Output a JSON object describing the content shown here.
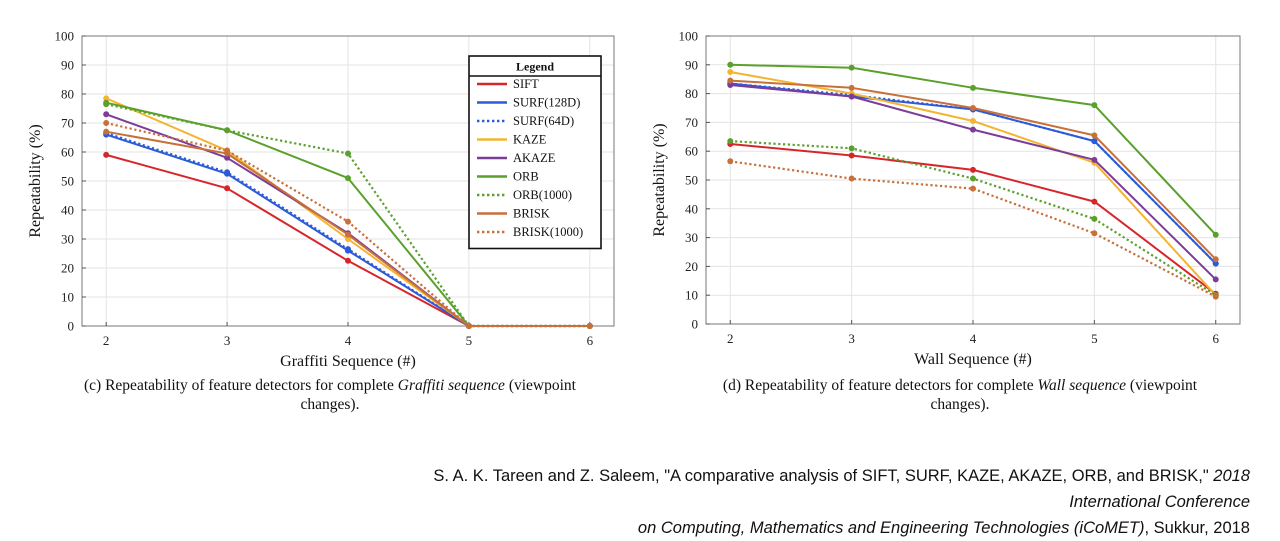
{
  "chart_data": [
    {
      "type": "line",
      "title": "",
      "xlabel": "Graffiti Sequence (#)",
      "ylabel": "Repeatability (%)",
      "x": [
        2,
        3,
        4,
        5,
        6
      ],
      "xlim": [
        1.8,
        6.2
      ],
      "ylim": [
        0,
        100
      ],
      "yticks": [
        0,
        10,
        20,
        30,
        40,
        50,
        60,
        70,
        80,
        90,
        100
      ],
      "grid": true,
      "legend": {
        "title": "Legend",
        "placement": "top-right",
        "entries": [
          "SIFT",
          "SURF(128D)",
          "SURF(64D)",
          "KAZE",
          "AKAZE",
          "ORB",
          "ORB(1000)",
          "BRISK",
          "BRISK(1000)"
        ]
      },
      "series": [
        {
          "name": "SIFT",
          "color": "#d7262b",
          "dash": "solid",
          "values": [
            59,
            47.5,
            22.5,
            0,
            0
          ]
        },
        {
          "name": "SURF(128D)",
          "color": "#2b5bd6",
          "dash": "solid",
          "values": [
            66,
            52.5,
            26,
            0,
            0
          ]
        },
        {
          "name": "SURF(64D)",
          "color": "#2b5bd6",
          "dash": "dotted",
          "values": [
            66.5,
            53,
            26.5,
            0,
            0
          ]
        },
        {
          "name": "KAZE",
          "color": "#f3b531",
          "dash": "solid",
          "values": [
            78.5,
            60.5,
            30,
            0,
            0
          ]
        },
        {
          "name": "AKAZE",
          "color": "#7d3c98",
          "dash": "solid",
          "values": [
            73,
            58,
            32,
            0,
            0
          ]
        },
        {
          "name": "ORB",
          "color": "#5aa02c",
          "dash": "solid",
          "values": [
            77,
            67.5,
            51,
            0,
            0
          ]
        },
        {
          "name": "ORB(1000)",
          "color": "#5aa02c",
          "dash": "dotted",
          "values": [
            76.5,
            67.5,
            59.5,
            0,
            0
          ]
        },
        {
          "name": "BRISK",
          "color": "#c8703a",
          "dash": "solid",
          "values": [
            67,
            59.5,
            31.5,
            0,
            0
          ]
        },
        {
          "name": "BRISK(1000)",
          "color": "#c8703a",
          "dash": "dotted",
          "values": [
            70,
            60.5,
            36,
            0,
            0
          ]
        }
      ]
    },
    {
      "type": "line",
      "title": "",
      "xlabel": "Wall Sequence (#)",
      "ylabel": "Repeatability (%)",
      "x": [
        2,
        3,
        4,
        5,
        6
      ],
      "xlim": [
        1.8,
        6.2
      ],
      "ylim": [
        0,
        100
      ],
      "yticks": [
        0,
        10,
        20,
        30,
        40,
        50,
        60,
        70,
        80,
        90,
        100
      ],
      "grid": true,
      "series": [
        {
          "name": "SIFT",
          "color": "#d7262b",
          "dash": "solid",
          "values": [
            62.5,
            58.5,
            53.5,
            42.5,
            10.5
          ]
        },
        {
          "name": "SURF(128D)",
          "color": "#2b5bd6",
          "dash": "solid",
          "values": [
            83.5,
            79,
            74.5,
            63.5,
            21
          ]
        },
        {
          "name": "SURF(64D)",
          "color": "#2b5bd6",
          "dash": "dotted",
          "values": [
            83.5,
            79.5,
            74.5,
            63.5,
            21
          ]
        },
        {
          "name": "KAZE",
          "color": "#f3b531",
          "dash": "solid",
          "values": [
            87.5,
            80,
            70.5,
            56,
            10
          ]
        },
        {
          "name": "AKAZE",
          "color": "#7d3c98",
          "dash": "solid",
          "values": [
            83,
            79,
            67.5,
            57,
            15.5
          ]
        },
        {
          "name": "ORB",
          "color": "#5aa02c",
          "dash": "solid",
          "values": [
            90,
            89,
            82,
            76,
            31
          ]
        },
        {
          "name": "ORB(1000)",
          "color": "#5aa02c",
          "dash": "dotted",
          "values": [
            63.5,
            61,
            50.5,
            36.5,
            10
          ]
        },
        {
          "name": "BRISK",
          "color": "#c8703a",
          "dash": "solid",
          "values": [
            84.5,
            82,
            75,
            65.5,
            22.5
          ]
        },
        {
          "name": "BRISK(1000)",
          "color": "#c8703a",
          "dash": "dotted",
          "values": [
            56.5,
            50.5,
            47,
            31.5,
            9.5
          ]
        }
      ]
    }
  ],
  "captions": {
    "left": {
      "prefix": "(c) Repeatability of feature detectors for complete ",
      "emph": "Graffiti sequence",
      "suffix_line1": " (viewpoint",
      "line2": "changes)."
    },
    "right": {
      "prefix": "(d) Repeatability of feature detectors for complete ",
      "emph": "Wall sequence",
      "suffix_line1": " (viewpoint",
      "line2": "changes)."
    }
  },
  "citation": {
    "line1_plain": "S. A. K. Tareen and Z. Saleem, \"A comparative analysis of SIFT, SURF, KAZE, AKAZE, ORB, and BRISK,\" ",
    "line1_italic": "2018 International Conference",
    "line2_italic": "on Computing, Mathematics and Engineering Technologies (iCoMET)",
    "line2_plain": ", Sukkur, 2018"
  }
}
